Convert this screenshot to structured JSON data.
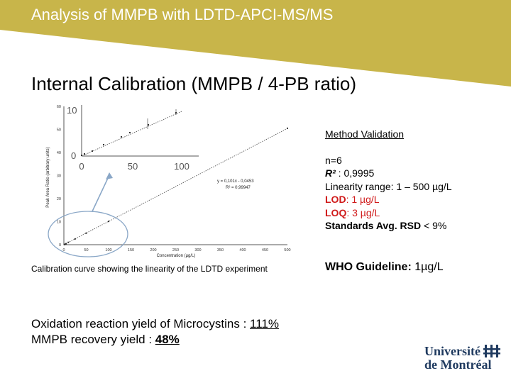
{
  "title": "Analysis of MMPB with LDTD-APCI-MS/MS",
  "subtitle": "Internal Calibration (MMPB / 4-PB ratio)",
  "chart": {
    "caption": "Calibration curve showing the linearity of the LDTD experiment",
    "equation": "y = 0,101x - 0,0453",
    "r2": "R² = 0,99947",
    "inset_y_ticks": [
      "10",
      "0"
    ],
    "inset_x_ticks": [
      "0",
      "50",
      "100"
    ]
  },
  "chart_data": {
    "type": "scatter",
    "xlabel": "Concentration (µg/L)",
    "ylabel": "Peak Area Ratio (arbitrary units)",
    "xlim": [
      0,
      500
    ],
    "ylim": [
      0,
      60
    ],
    "x_ticks": [
      "0",
      "50",
      "100",
      "150",
      "200",
      "250",
      "300",
      "350",
      "400",
      "450",
      "500"
    ],
    "y_ticks": [
      "0",
      "10",
      "20",
      "30",
      "40",
      "50",
      "60"
    ],
    "points": [
      {
        "x": 1,
        "y": 0.05
      },
      {
        "x": 3,
        "y": 0.25
      },
      {
        "x": 5,
        "y": 0.45
      },
      {
        "x": 10,
        "y": 1.0
      },
      {
        "x": 25,
        "y": 2.5
      },
      {
        "x": 50,
        "y": 5.0
      },
      {
        "x": 100,
        "y": 10.1
      },
      {
        "x": 500,
        "y": 50.5
      }
    ],
    "fit": {
      "slope": 0.101,
      "intercept": -0.0453
    }
  },
  "validation": {
    "heading": "Method Validation",
    "n": "n=6",
    "r2_label": "R²",
    "r2_value": " : 0,9995",
    "linearity_label": "Linearity range:",
    "linearity_value": " 1 – 500 µg/L",
    "lod_label": "LOD",
    "lod_value": ": 1 µg/L",
    "loq_label": "LOQ",
    "loq_value": ": 3 µg/L",
    "rsd_label": "Standards Avg. RSD",
    "rsd_value": " < 9%"
  },
  "who": {
    "label": "WHO Guideline:",
    "value": " 1µg/L"
  },
  "results": {
    "line1_label": "Oxidation reaction yield of Microcystins : ",
    "line1_value": "111%",
    "line2_label": "MMPB recovery yield : ",
    "line2_value": "48%"
  },
  "logo": {
    "line1": "Université",
    "line2": "de Montréal"
  },
  "colors": {
    "band": "#c8b54a",
    "lod_loq": "#d01a1a",
    "logo": "#1f3a5f",
    "circle": "#8aa7c7"
  }
}
